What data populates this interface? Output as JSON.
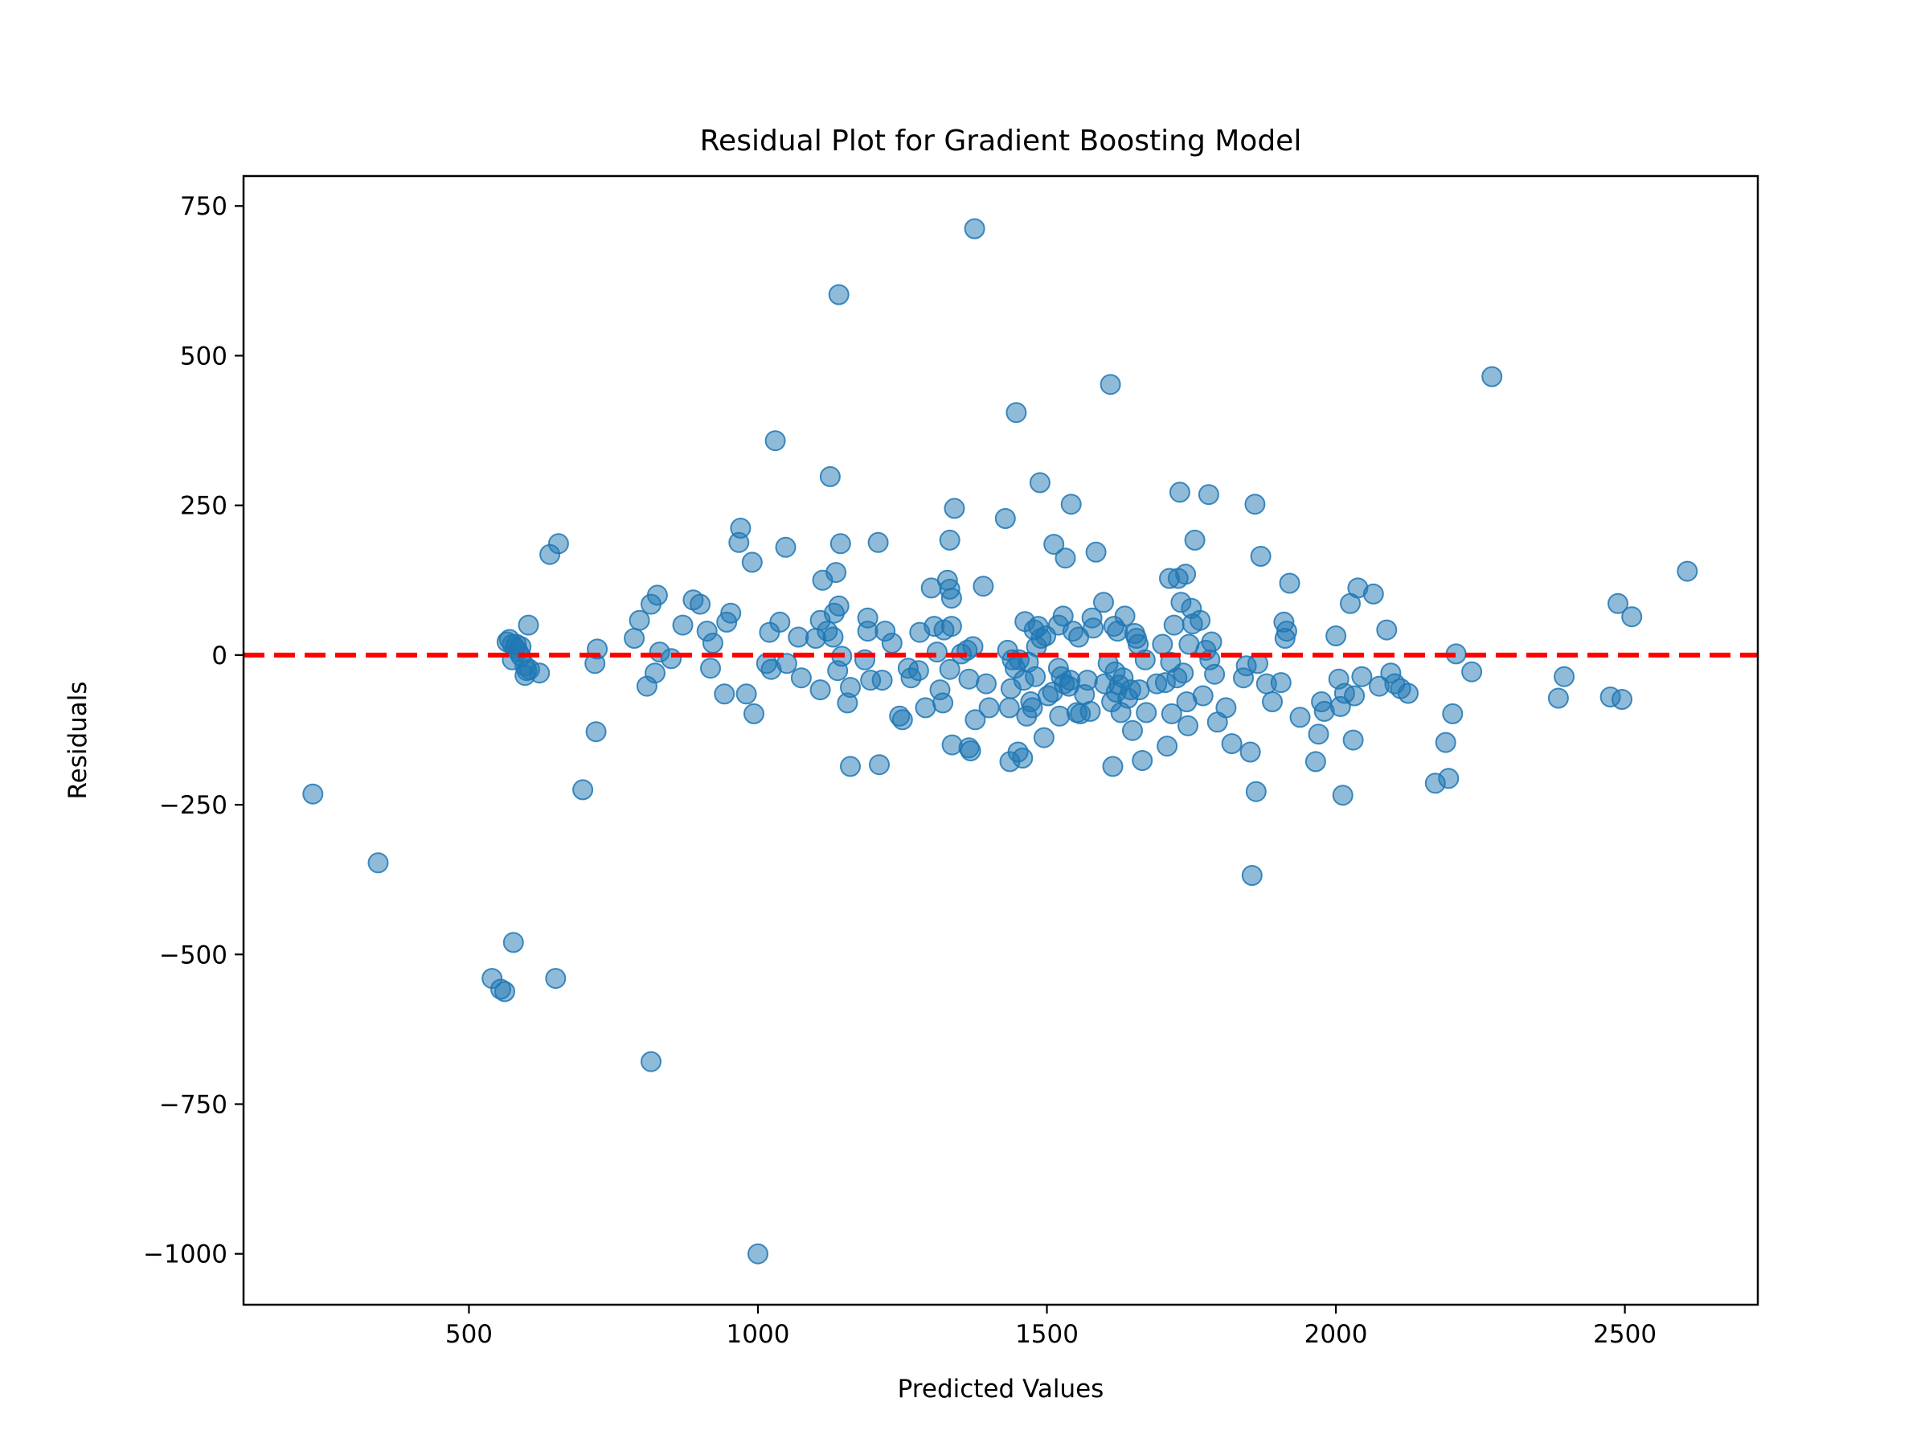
{
  "chart_data": {
    "type": "scatter",
    "title": "Residual Plot for Gradient Boosting Model",
    "xlabel": "Predicted Values",
    "ylabel": "Residuals",
    "xlim": [
      110,
      2730
    ],
    "ylim": [
      -1085,
      800
    ],
    "xticks": [
      500,
      1000,
      1500,
      2000,
      2500
    ],
    "yticks": [
      750,
      500,
      250,
      0,
      -250,
      -500,
      -750,
      -1000
    ],
    "xtick_labels": [
      "500",
      "1000",
      "1500",
      "2000",
      "2500"
    ],
    "ytick_labels": [
      "750",
      "500",
      "250",
      "0",
      "−250",
      "−500",
      "−750",
      "−1000"
    ],
    "grid": false,
    "reference_line": {
      "y": 0,
      "style": "dashed",
      "color": "#ff0000"
    },
    "point_color": "#1f77b4",
    "point_alpha": 0.5,
    "points": [
      [
        230,
        -232
      ],
      [
        343,
        -347
      ],
      [
        540,
        -540
      ],
      [
        555,
        -558
      ],
      [
        562,
        -562
      ],
      [
        577,
        -480
      ],
      [
        650,
        -540
      ],
      [
        815,
        -679
      ],
      [
        1000,
        -1000
      ],
      [
        697,
        -225
      ],
      [
        720,
        -128
      ],
      [
        640,
        168
      ],
      [
        655,
        186
      ],
      [
        603,
        50
      ],
      [
        622,
        -30
      ],
      [
        566,
        22
      ],
      [
        570,
        26
      ],
      [
        575,
        18
      ],
      [
        580,
        12
      ],
      [
        585,
        6
      ],
      [
        590,
        -2
      ],
      [
        575,
        -8
      ],
      [
        597,
        -18
      ],
      [
        600,
        -26
      ],
      [
        597,
        -34
      ],
      [
        605,
        -24
      ],
      [
        582,
        18
      ],
      [
        590,
        14
      ],
      [
        718,
        -14
      ],
      [
        722,
        10
      ],
      [
        786,
        28
      ],
      [
        795,
        58
      ],
      [
        808,
        -52
      ],
      [
        815,
        85
      ],
      [
        822,
        -30
      ],
      [
        830,
        5
      ],
      [
        826,
        100
      ],
      [
        850,
        -6
      ],
      [
        870,
        50
      ],
      [
        888,
        92
      ],
      [
        900,
        85
      ],
      [
        912,
        40
      ],
      [
        918,
        -22
      ],
      [
        922,
        20
      ],
      [
        942,
        -65
      ],
      [
        946,
        55
      ],
      [
        953,
        70
      ],
      [
        967,
        188
      ],
      [
        970,
        212
      ],
      [
        980,
        -65
      ],
      [
        990,
        155
      ],
      [
        993,
        -98
      ],
      [
        1020,
        38
      ],
      [
        1015,
        -14
      ],
      [
        1023,
        -24
      ],
      [
        1030,
        358
      ],
      [
        1038,
        55
      ],
      [
        1048,
        180
      ],
      [
        1050,
        -14
      ],
      [
        1070,
        30
      ],
      [
        1075,
        -38
      ],
      [
        1100,
        28
      ],
      [
        1108,
        -58
      ],
      [
        1108,
        58
      ],
      [
        1112,
        125
      ],
      [
        1120,
        40
      ],
      [
        1125,
        298
      ],
      [
        1130,
        30
      ],
      [
        1132,
        70
      ],
      [
        1135,
        138
      ],
      [
        1138,
        -26
      ],
      [
        1140,
        82
      ],
      [
        1140,
        602
      ],
      [
        1143,
        186
      ],
      [
        1145,
        -2
      ],
      [
        1155,
        -80
      ],
      [
        1160,
        -54
      ],
      [
        1160,
        -186
      ],
      [
        1185,
        -8
      ],
      [
        1190,
        62
      ],
      [
        1190,
        40
      ],
      [
        1195,
        -42
      ],
      [
        1208,
        188
      ],
      [
        1210,
        -183
      ],
      [
        1215,
        -42
      ],
      [
        1220,
        40
      ],
      [
        1232,
        20
      ],
      [
        1245,
        -102
      ],
      [
        1250,
        -108
      ],
      [
        1260,
        -22
      ],
      [
        1265,
        -38
      ],
      [
        1278,
        -26
      ],
      [
        1280,
        38
      ],
      [
        1290,
        -88
      ],
      [
        1300,
        112
      ],
      [
        1305,
        48
      ],
      [
        1310,
        5
      ],
      [
        1315,
        -58
      ],
      [
        1320,
        -80
      ],
      [
        1322,
        42
      ],
      [
        1328,
        125
      ],
      [
        1332,
        110
      ],
      [
        1335,
        95
      ],
      [
        1335,
        48
      ],
      [
        1332,
        -24
      ],
      [
        1332,
        192
      ],
      [
        1336,
        -150
      ],
      [
        1340,
        245
      ],
      [
        1352,
        2
      ],
      [
        1362,
        8
      ],
      [
        1365,
        -40
      ],
      [
        1365,
        -155
      ],
      [
        1368,
        -160
      ],
      [
        1372,
        14
      ],
      [
        1375,
        712
      ],
      [
        1376,
        -108
      ],
      [
        1390,
        115
      ],
      [
        1395,
        -48
      ],
      [
        1400,
        -88
      ],
      [
        1428,
        228
      ],
      [
        1432,
        8
      ],
      [
        1435,
        -88
      ],
      [
        1436,
        -178
      ],
      [
        1438,
        -56
      ],
      [
        1440,
        -8
      ],
      [
        1445,
        -22
      ],
      [
        1447,
        405
      ],
      [
        1450,
        -162
      ],
      [
        1452,
        -8
      ],
      [
        1458,
        -172
      ],
      [
        1460,
        -42
      ],
      [
        1462,
        56
      ],
      [
        1465,
        -102
      ],
      [
        1468,
        -12
      ],
      [
        1472,
        -78
      ],
      [
        1475,
        -88
      ],
      [
        1478,
        42
      ],
      [
        1480,
        -36
      ],
      [
        1482,
        14
      ],
      [
        1485,
        48
      ],
      [
        1488,
        288
      ],
      [
        1490,
        28
      ],
      [
        1495,
        -138
      ],
      [
        1498,
        32
      ],
      [
        1502,
        -68
      ],
      [
        1510,
        -62
      ],
      [
        1512,
        185
      ],
      [
        1520,
        -22
      ],
      [
        1520,
        50
      ],
      [
        1522,
        -102
      ],
      [
        1525,
        -36
      ],
      [
        1528,
        65
      ],
      [
        1530,
        -48
      ],
      [
        1532,
        162
      ],
      [
        1538,
        -52
      ],
      [
        1540,
        -42
      ],
      [
        1542,
        252
      ],
      [
        1545,
        40
      ],
      [
        1552,
        -96
      ],
      [
        1555,
        30
      ],
      [
        1558,
        -98
      ],
      [
        1565,
        -66
      ],
      [
        1570,
        -42
      ],
      [
        1575,
        -94
      ],
      [
        1578,
        62
      ],
      [
        1580,
        45
      ],
      [
        1585,
        172
      ],
      [
        1598,
        88
      ],
      [
        1600,
        -48
      ],
      [
        1606,
        -14
      ],
      [
        1610,
        452
      ],
      [
        1612,
        -78
      ],
      [
        1614,
        -186
      ],
      [
        1616,
        48
      ],
      [
        1618,
        -28
      ],
      [
        1620,
        -62
      ],
      [
        1622,
        40
      ],
      [
        1625,
        -50
      ],
      [
        1628,
        -96
      ],
      [
        1632,
        -38
      ],
      [
        1635,
        65
      ],
      [
        1640,
        -72
      ],
      [
        1645,
        -58
      ],
      [
        1648,
        -126
      ],
      [
        1652,
        36
      ],
      [
        1655,
        28
      ],
      [
        1658,
        18
      ],
      [
        1660,
        -58
      ],
      [
        1665,
        -176
      ],
      [
        1670,
        -8
      ],
      [
        1672,
        -96
      ],
      [
        1690,
        -48
      ],
      [
        1700,
        18
      ],
      [
        1705,
        -46
      ],
      [
        1708,
        -152
      ],
      [
        1712,
        128
      ],
      [
        1714,
        -12
      ],
      [
        1716,
        -98
      ],
      [
        1720,
        50
      ],
      [
        1725,
        -38
      ],
      [
        1727,
        128
      ],
      [
        1730,
        272
      ],
      [
        1732,
        88
      ],
      [
        1736,
        -30
      ],
      [
        1740,
        135
      ],
      [
        1742,
        -78
      ],
      [
        1744,
        -118
      ],
      [
        1746,
        18
      ],
      [
        1750,
        78
      ],
      [
        1752,
        52
      ],
      [
        1756,
        192
      ],
      [
        1765,
        58
      ],
      [
        1770,
        -68
      ],
      [
        1775,
        8
      ],
      [
        1780,
        268
      ],
      [
        1782,
        -8
      ],
      [
        1785,
        22
      ],
      [
        1790,
        -32
      ],
      [
        1795,
        -112
      ],
      [
        1810,
        -88
      ],
      [
        1820,
        -148
      ],
      [
        1840,
        -38
      ],
      [
        1845,
        -18
      ],
      [
        1852,
        -162
      ],
      [
        1855,
        -368
      ],
      [
        1860,
        252
      ],
      [
        1862,
        -228
      ],
      [
        1865,
        -14
      ],
      [
        1870,
        165
      ],
      [
        1880,
        -48
      ],
      [
        1890,
        -78
      ],
      [
        1905,
        -46
      ],
      [
        1910,
        55
      ],
      [
        1912,
        28
      ],
      [
        1915,
        40
      ],
      [
        1920,
        120
      ],
      [
        1938,
        -104
      ],
      [
        1965,
        -178
      ],
      [
        1970,
        -132
      ],
      [
        1975,
        -78
      ],
      [
        1980,
        -94
      ],
      [
        2000,
        32
      ],
      [
        2005,
        -40
      ],
      [
        2008,
        -86
      ],
      [
        2012,
        -234
      ],
      [
        2015,
        -64
      ],
      [
        2025,
        86
      ],
      [
        2030,
        -142
      ],
      [
        2032,
        -68
      ],
      [
        2038,
        112
      ],
      [
        2045,
        -36
      ],
      [
        2065,
        102
      ],
      [
        2075,
        -52
      ],
      [
        2088,
        42
      ],
      [
        2095,
        -30
      ],
      [
        2102,
        -48
      ],
      [
        2112,
        -56
      ],
      [
        2125,
        -64
      ],
      [
        2172,
        -214
      ],
      [
        2190,
        -146
      ],
      [
        2195,
        -206
      ],
      [
        2202,
        -98
      ],
      [
        2208,
        2
      ],
      [
        2235,
        -28
      ],
      [
        2270,
        465
      ],
      [
        2385,
        -72
      ],
      [
        2395,
        -36
      ],
      [
        2475,
        -70
      ],
      [
        2488,
        86
      ],
      [
        2495,
        -74
      ],
      [
        2512,
        64
      ],
      [
        2608,
        140
      ]
    ]
  }
}
